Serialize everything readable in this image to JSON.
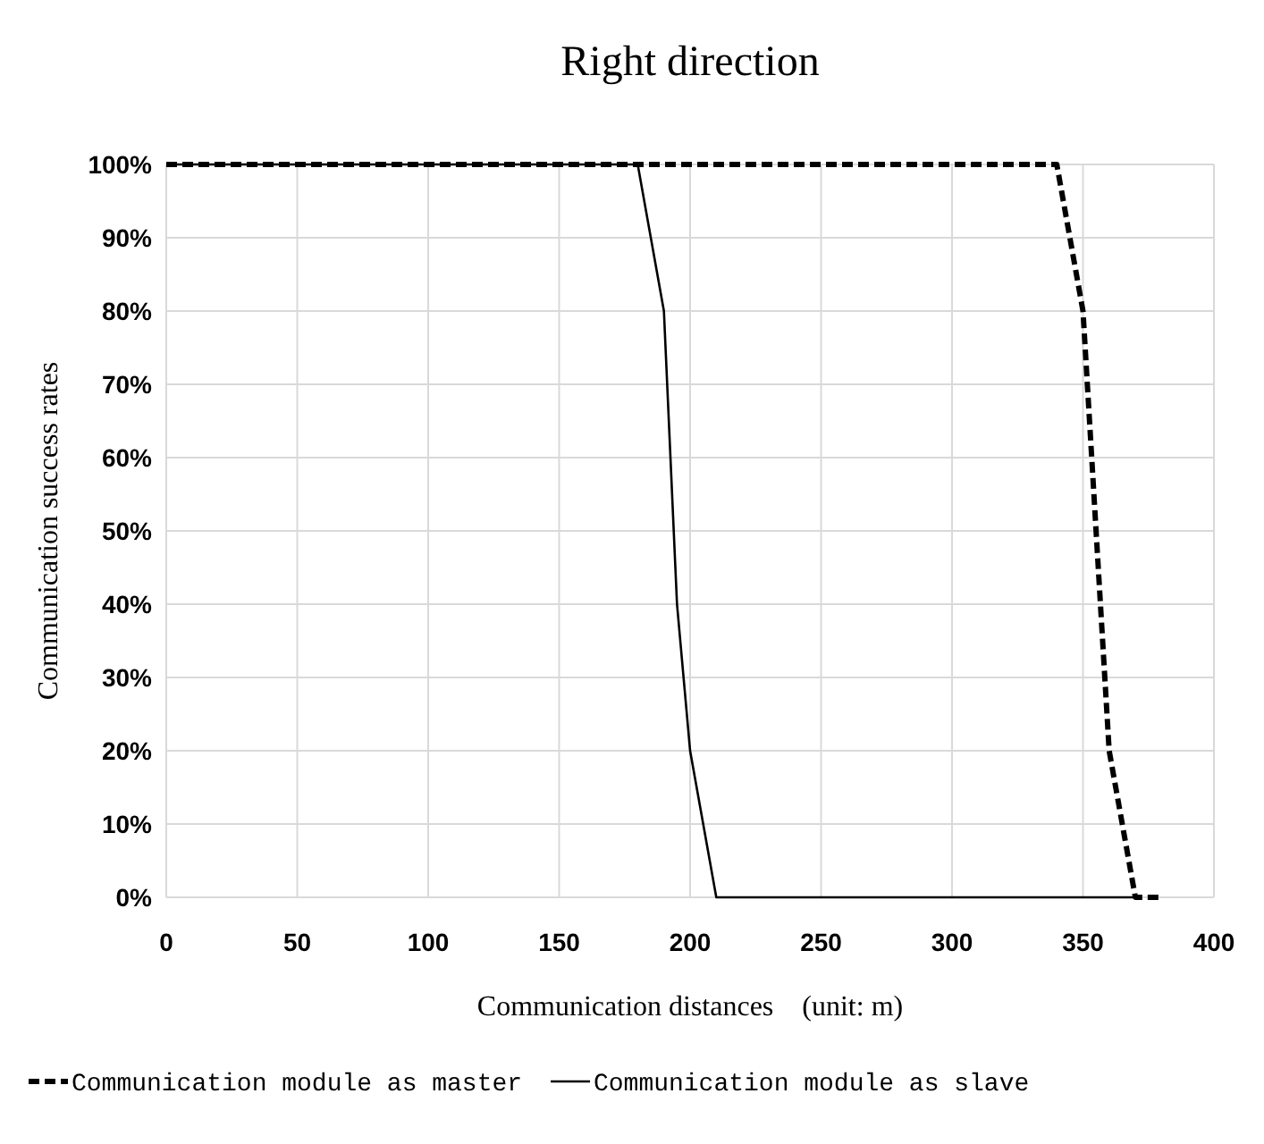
{
  "chart_data": {
    "type": "line",
    "title": "Right direction",
    "xlabel": "Communication distances　(unit: m)",
    "ylabel": "Communication success rates",
    "xlim": [
      0,
      400
    ],
    "xticks": [
      0,
      50,
      100,
      150,
      200,
      250,
      300,
      350,
      400
    ],
    "ylim": [
      0,
      100
    ],
    "yticks": [
      {
        "value": 0,
        "label": "0%"
      },
      {
        "value": 10,
        "label": "10%"
      },
      {
        "value": 20,
        "label": "20%"
      },
      {
        "value": 30,
        "label": "30%"
      },
      {
        "value": 40,
        "label": "40%"
      },
      {
        "value": 50,
        "label": "50%"
      },
      {
        "value": 60,
        "label": "60%"
      },
      {
        "value": 70,
        "label": "70%"
      },
      {
        "value": 80,
        "label": "80%"
      },
      {
        "value": 90,
        "label": "90%"
      },
      {
        "value": 100,
        "label": "100%"
      }
    ],
    "grid": true,
    "legend": "bottom",
    "marker": "none",
    "series": [
      {
        "name": "Communication module as master",
        "color": "#000000",
        "line_style": "dashed",
        "x": [
          0,
          340,
          350,
          360,
          370,
          380
        ],
        "values": [
          100,
          100,
          80,
          20,
          0,
          0
        ]
      },
      {
        "name": "Communication module as slave",
        "color": "#000000",
        "line_style": "solid",
        "x": [
          0,
          180,
          190,
          195,
          200,
          210,
          370
        ],
        "values": [
          100,
          100,
          80,
          40,
          20,
          0,
          0
        ]
      }
    ]
  }
}
